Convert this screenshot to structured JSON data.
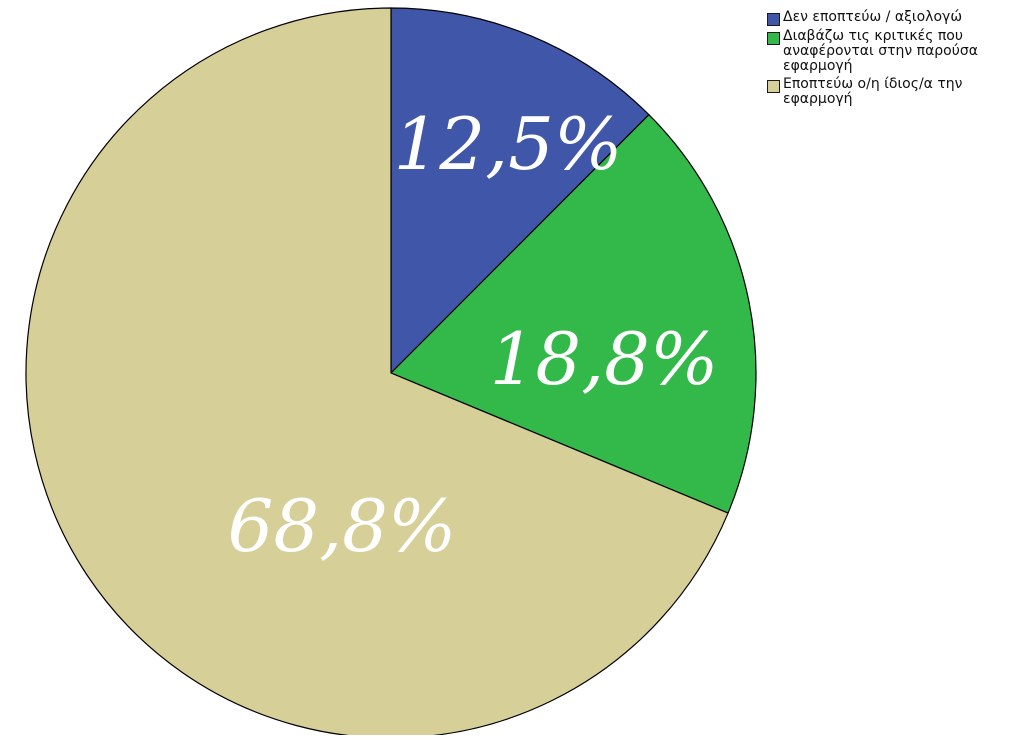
{
  "chart_data": {
    "type": "pie",
    "slices": [
      {
        "label": "Δεν εποπτεύω / αξιολογώ",
        "value": 12.5,
        "display": "12,5%",
        "color": "#3f56a9",
        "label_color": "#ffffff"
      },
      {
        "label": "Διαβάζω τις κριτικές που\nαναφέρονται στην παρούσα\nεφαρμογή",
        "value": 18.8,
        "display": "18,8%",
        "color": "#33b84a",
        "label_color": "#ffffff"
      },
      {
        "label": "Εποπτεύω ο/η ίδιος/α την\nεφαρμογή",
        "value": 68.8,
        "display": "68,8%",
        "color": "#d6cf98",
        "label_color": "#ffffff"
      }
    ],
    "start_angle_deg": 0,
    "direction": "clockwise",
    "legend_position": "top-right"
  }
}
